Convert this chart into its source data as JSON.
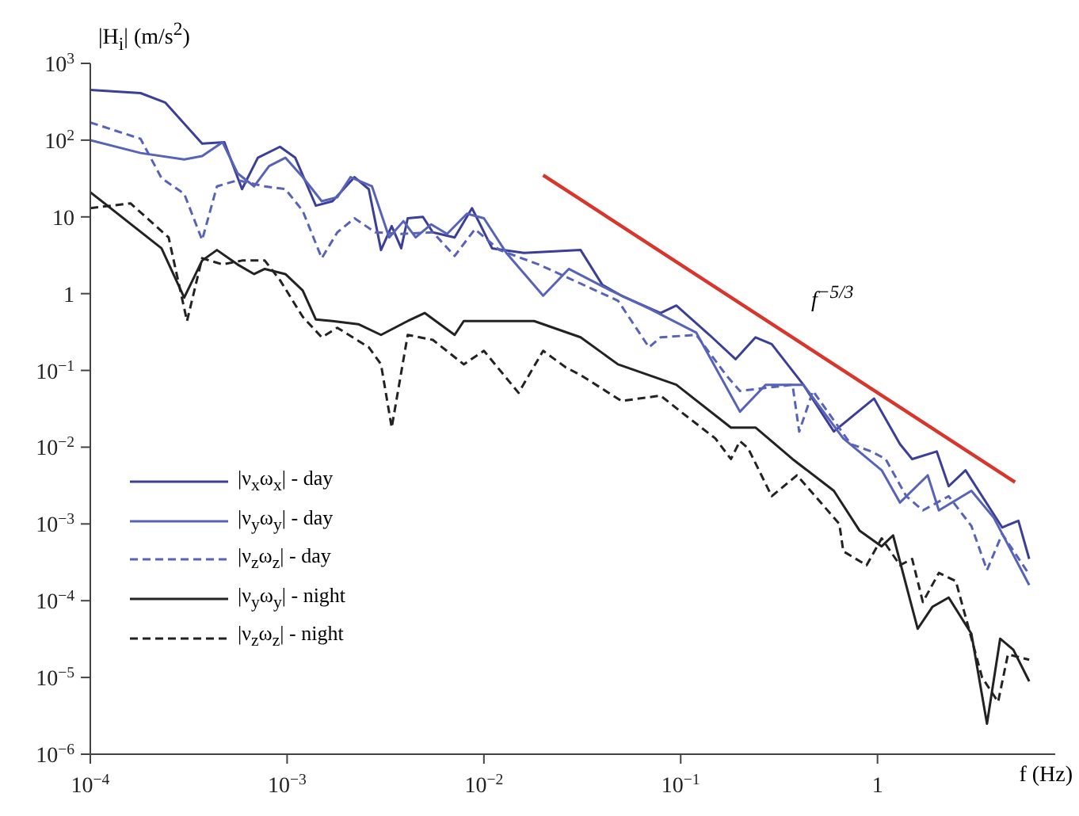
{
  "chart_data": {
    "type": "line",
    "xlabel": "f (Hz)",
    "ylabel": "|H$_{i}$| (m/s$^{2}$)",
    "log": "xy",
    "grid": false,
    "legend": "bottom left",
    "marker": "none",
    "xlim": [
      0.0001,
      8
    ],
    "ylim": [
      1e-06,
      1000
    ],
    "xticks": [
      {
        "value": 0.0001,
        "label": "10$^{−4}$"
      },
      {
        "value": 0.001,
        "label": "10$^{−3}$"
      },
      {
        "value": 0.01,
        "label": "10$^{−2}$"
      },
      {
        "value": 0.1,
        "label": "10$^{−1}$"
      },
      1
    ],
    "yticks": [
      {
        "value": 1e-06,
        "label": "10$^{−6}$"
      },
      {
        "value": 1e-05,
        "label": "10$^{−5}$"
      },
      {
        "value": 0.0001,
        "label": "10$^{−4}$"
      },
      {
        "value": 0.001,
        "label": "10$^{−3}$"
      },
      {
        "value": 0.01,
        "label": "10$^{−2}$"
      },
      {
        "value": 0.1,
        "label": "10$^{−1}$"
      },
      1,
      10,
      {
        "value": 100,
        "label": "10$^{2}$"
      },
      {
        "value": 1000,
        "label": "10$^{3}$"
      }
    ],
    "annotations": [
      "f$^{−5/3}$"
    ],
    "series": [
      {
        "name": "|ν$_{x}$ω$_{x}$| - day",
        "color": "#3b3f98",
        "line_style": "solid",
        "x": [
          0.0001,
          0.00018,
          0.00024,
          0.00037,
          0.00048,
          0.00059,
          0.00071,
          0.00092,
          0.0011,
          0.0014,
          0.0017,
          0.0022,
          0.0026,
          0.003,
          0.0034,
          0.0038,
          0.0041,
          0.0049,
          0.0055,
          0.0071,
          0.0087,
          0.011,
          0.016,
          0.031,
          0.04,
          0.05,
          0.079,
          0.095,
          0.14,
          0.19,
          0.24,
          0.29,
          0.42,
          0.6,
          0.96,
          1.3,
          1.5,
          2,
          2.3,
          2.8,
          4.3,
          5.2,
          5.9
        ],
        "values": [
          450,
          410,
          310,
          90,
          94,
          23,
          59,
          82,
          59,
          14,
          16,
          33,
          23,
          3.7,
          7.6,
          3.9,
          9.6,
          10,
          6.3,
          5.4,
          13,
          3.9,
          3.4,
          3.7,
          1.3,
          0.94,
          0.56,
          0.7,
          0.29,
          0.14,
          0.27,
          0.22,
          0.065,
          0.016,
          0.043,
          0.011,
          0.007,
          0.0088,
          0.0031,
          0.005,
          0.0009,
          0.0011,
          0.00035
        ]
      },
      {
        "name": "|ν$_{y}$ω$_{y}$| - day",
        "color": "#5763b8",
        "line_style": "solid",
        "x": [
          0.0001,
          0.00018,
          0.0003,
          0.00037,
          0.00047,
          0.00056,
          0.00068,
          0.00081,
          0.00098,
          0.0012,
          0.0015,
          0.0018,
          0.0021,
          0.0027,
          0.0033,
          0.0039,
          0.0045,
          0.0054,
          0.0065,
          0.0082,
          0.01,
          0.013,
          0.02,
          0.027,
          0.044,
          0.069,
          0.12,
          0.2,
          0.27,
          0.42,
          0.67,
          1.05,
          1.3,
          1.8,
          2.05,
          3,
          3.9,
          5.9
        ],
        "values": [
          100,
          68,
          56,
          62,
          94,
          37,
          25,
          46,
          59,
          33,
          16,
          18,
          33,
          25,
          5.4,
          8.8,
          5.4,
          8,
          6,
          11,
          9.6,
          3.4,
          0.94,
          2.1,
          1.1,
          0.64,
          0.31,
          0.029,
          0.065,
          0.065,
          0.013,
          0.005,
          0.0019,
          0.0043,
          0.0015,
          0.0027,
          0.0012,
          0.00016
        ]
      },
      {
        "name": "|ν$_{z}$ω$_{z}$| - day",
        "color": "#5763b8",
        "line_style": "dashed",
        "x": [
          0.0001,
          0.00018,
          0.00023,
          0.0003,
          0.00037,
          0.00044,
          0.00056,
          0.00077,
          0.00098,
          0.0012,
          0.0015,
          0.0018,
          0.0022,
          0.0028,
          0.0038,
          0.0055,
          0.0071,
          0.009,
          0.012,
          0.019,
          0.048,
          0.069,
          0.079,
          0.12,
          0.17,
          0.2,
          0.37,
          0.4,
          0.47,
          0.73,
          0.93,
          1.1,
          1.4,
          1.7,
          2.3,
          3,
          3.6,
          4.3,
          5.9
        ],
        "values": [
          170,
          104,
          32,
          20,
          5,
          25,
          30,
          25,
          23,
          12,
          2.9,
          6.3,
          9.6,
          6.3,
          6,
          6.3,
          3.1,
          6.9,
          3.7,
          2.4,
          0.81,
          0.2,
          0.27,
          0.29,
          0.087,
          0.054,
          0.065,
          0.016,
          0.054,
          0.011,
          0.0088,
          0.007,
          0.0023,
          0.0015,
          0.0023,
          0.00094,
          0.00025,
          0.00074,
          0.00022
        ]
      },
      {
        "name": "|ν$_{y}$ω$_{y}$| - night",
        "color": "#222222",
        "line_style": "solid",
        "x": [
          0.0001,
          0.00023,
          0.0003,
          0.00037,
          0.00044,
          0.00056,
          0.00068,
          0.00077,
          0.00098,
          0.0012,
          0.0014,
          0.0017,
          0.0023,
          0.003,
          0.0041,
          0.005,
          0.0071,
          0.0079,
          0.014,
          0.018,
          0.031,
          0.048,
          0.095,
          0.18,
          0.24,
          0.37,
          0.6,
          0.81,
          1.05,
          1.2,
          1.6,
          1.9,
          2.3,
          3,
          3.6,
          4.2,
          4.9,
          5.9
        ],
        "values": [
          21,
          3.9,
          0.89,
          2.7,
          3.7,
          2.4,
          1.8,
          2.1,
          1.8,
          1.1,
          0.46,
          0.44,
          0.4,
          0.29,
          0.44,
          0.56,
          0.29,
          0.44,
          0.44,
          0.44,
          0.27,
          0.12,
          0.065,
          0.018,
          0.018,
          0.007,
          0.0027,
          0.00082,
          0.00051,
          0.00071,
          4.3e-05,
          8.3e-05,
          0.00011,
          3.7e-05,
          2.5e-06,
          3.2e-05,
          2.3e-05,
          8.9e-06
        ]
      },
      {
        "name": "|ν$_{z}$ω$_{z}$| - night",
        "color": "#222222",
        "line_style": "dashed",
        "x": [
          0.0001,
          0.00016,
          0.00025,
          0.00031,
          0.00037,
          0.00047,
          0.00059,
          0.00077,
          0.00092,
          0.0012,
          0.0015,
          0.0018,
          0.0026,
          0.003,
          0.0034,
          0.0041,
          0.0055,
          0.0079,
          0.01,
          0.015,
          0.02,
          0.026,
          0.031,
          0.05,
          0.079,
          0.1,
          0.15,
          0.18,
          0.2,
          0.22,
          0.29,
          0.39,
          0.64,
          0.67,
          0.88,
          1.05,
          1.3,
          1.5,
          1.7,
          2.05,
          2.5,
          3.4,
          4.1,
          4.6,
          5.9
        ],
        "values": [
          13,
          15,
          5.4,
          0.44,
          2.9,
          2.4,
          2.7,
          2.7,
          1.5,
          0.5,
          0.27,
          0.36,
          0.2,
          0.12,
          0.018,
          0.29,
          0.25,
          0.12,
          0.18,
          0.051,
          0.18,
          0.11,
          0.087,
          0.04,
          0.047,
          0.029,
          0.013,
          0.007,
          0.012,
          0.0097,
          0.0023,
          0.0043,
          0.001,
          0.00044,
          0.00029,
          0.00065,
          0.00029,
          0.00035,
          9.6e-05,
          0.00023,
          0.00018,
          1e-05,
          4.8e-06,
          2e-05,
          1.7e-05
        ]
      },
      {
        "color": "#d8352b",
        "line_style": "solid",
        "x": [
          0.02,
          5
        ],
        "values": [
          35,
          0.0035
        ]
      }
    ]
  }
}
